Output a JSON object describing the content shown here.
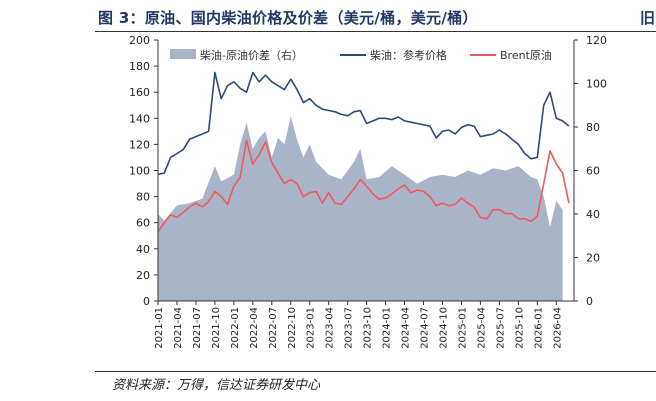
{
  "figure": {
    "title": "图 3：原油、国内柴油价格及价差（美元/桶，美元/桶）",
    "title_cut_char": "旧",
    "source": "资料来源：万得，信达证券研发中心"
  },
  "chart_data": {
    "type": "line",
    "x_ticks": [
      "2021-01",
      "2021-04",
      "2021-07",
      "2021-10",
      "2022-01",
      "2022-04",
      "2022-07",
      "2022-10",
      "2023-01",
      "2023-04",
      "2023-07",
      "2023-10",
      "2024-01",
      "2024-04",
      "2024-07",
      "2024-10",
      "2025-01",
      "2025-04",
      "2025-07",
      "2025-10",
      "2026-01",
      "2026-04"
    ],
    "left_axis": {
      "ylim": [
        0,
        200
      ],
      "ticks": [
        "0",
        "20",
        "40",
        "60",
        "80",
        "100",
        "120",
        "140",
        "160",
        "180",
        "200"
      ]
    },
    "right_axis": {
      "ylim": [
        0,
        120
      ],
      "ticks": [
        "0",
        "20",
        "40",
        "60",
        "80",
        "100",
        "120"
      ]
    },
    "grid": false,
    "legend_position": "top",
    "series": [
      {
        "name": "柴油-原油价差（右）",
        "type": "area",
        "axis": "right",
        "color": "#aab4c8",
        "points": [
          [
            "2021-01",
            40
          ],
          [
            "2021-02",
            37
          ],
          [
            "2021-04",
            44
          ],
          [
            "2021-06",
            45
          ],
          [
            "2021-08",
            47
          ],
          [
            "2021-10",
            62
          ],
          [
            "2021-11",
            55
          ],
          [
            "2022-01",
            58
          ],
          [
            "2022-02",
            72
          ],
          [
            "2022-03",
            82
          ],
          [
            "2022-04",
            70
          ],
          [
            "2022-05",
            75
          ],
          [
            "2022-06",
            78
          ],
          [
            "2022-07",
            66
          ],
          [
            "2022-08",
            75
          ],
          [
            "2022-09",
            72
          ],
          [
            "2022-10",
            85
          ],
          [
            "2022-11",
            74
          ],
          [
            "2022-12",
            66
          ],
          [
            "2023-01",
            72
          ],
          [
            "2023-02",
            64
          ],
          [
            "2023-04",
            58
          ],
          [
            "2023-06",
            56
          ],
          [
            "2023-08",
            64
          ],
          [
            "2023-09",
            70
          ],
          [
            "2023-10",
            56
          ],
          [
            "2023-12",
            57
          ],
          [
            "2024-02",
            62
          ],
          [
            "2024-04",
            58
          ],
          [
            "2024-06",
            54
          ],
          [
            "2024-08",
            57
          ],
          [
            "2024-10",
            58
          ],
          [
            "2024-12",
            57
          ],
          [
            "2025-02",
            60
          ],
          [
            "2025-04",
            58
          ],
          [
            "2025-06",
            61
          ],
          [
            "2025-08",
            60
          ],
          [
            "2025-10",
            62
          ],
          [
            "2025-12",
            57
          ],
          [
            "2026-01",
            56
          ],
          [
            "2026-02",
            48
          ],
          [
            "2026-03",
            34
          ],
          [
            "2026-04",
            46
          ],
          [
            "2026-05",
            42
          ]
        ]
      },
      {
        "name": "柴油：参考价格",
        "type": "line",
        "axis": "left",
        "color": "#2e4a7a",
        "points": [
          [
            "2021-01",
            97
          ],
          [
            "2021-02",
            98
          ],
          [
            "2021-03",
            110
          ],
          [
            "2021-04",
            113
          ],
          [
            "2021-05",
            116
          ],
          [
            "2021-06",
            124
          ],
          [
            "2021-07",
            126
          ],
          [
            "2021-08",
            128
          ],
          [
            "2021-09",
            130
          ],
          [
            "2021-10",
            175
          ],
          [
            "2021-11",
            155
          ],
          [
            "2021-12",
            165
          ],
          [
            "2022-01",
            168
          ],
          [
            "2022-02",
            163
          ],
          [
            "2022-03",
            160
          ],
          [
            "2022-04",
            175
          ],
          [
            "2022-05",
            168
          ],
          [
            "2022-06",
            173
          ],
          [
            "2022-07",
            168
          ],
          [
            "2022-08",
            165
          ],
          [
            "2022-09",
            162
          ],
          [
            "2022-10",
            170
          ],
          [
            "2022-11",
            162
          ],
          [
            "2022-12",
            152
          ],
          [
            "2023-01",
            155
          ],
          [
            "2023-02",
            150
          ],
          [
            "2023-03",
            147
          ],
          [
            "2023-04",
            146
          ],
          [
            "2023-05",
            145
          ],
          [
            "2023-06",
            143
          ],
          [
            "2023-07",
            142
          ],
          [
            "2023-08",
            145
          ],
          [
            "2023-09",
            146
          ],
          [
            "2023-10",
            136
          ],
          [
            "2023-11",
            138
          ],
          [
            "2023-12",
            140
          ],
          [
            "2024-01",
            140
          ],
          [
            "2024-02",
            139
          ],
          [
            "2024-03",
            141
          ],
          [
            "2024-04",
            138
          ],
          [
            "2024-05",
            137
          ],
          [
            "2024-06",
            136
          ],
          [
            "2024-07",
            135
          ],
          [
            "2024-08",
            134
          ],
          [
            "2024-09",
            125
          ],
          [
            "2024-10",
            130
          ],
          [
            "2024-11",
            131
          ],
          [
            "2024-12",
            128
          ],
          [
            "2025-01",
            133
          ],
          [
            "2025-02",
            135
          ],
          [
            "2025-03",
            134
          ],
          [
            "2025-04",
            126
          ],
          [
            "2025-05",
            127
          ],
          [
            "2025-06",
            128
          ],
          [
            "2025-07",
            131
          ],
          [
            "2025-08",
            128
          ],
          [
            "2025-09",
            124
          ],
          [
            "2025-10",
            120
          ],
          [
            "2025-11",
            113
          ],
          [
            "2025-12",
            109
          ],
          [
            "2026-01",
            110
          ],
          [
            "2026-02",
            150
          ],
          [
            "2026-03",
            160
          ],
          [
            "2026-04",
            140
          ],
          [
            "2026-05",
            138
          ],
          [
            "2026-06",
            134
          ]
        ]
      },
      {
        "name": "Brent原油",
        "type": "line",
        "axis": "left",
        "color": "#ee5a5a",
        "points": [
          [
            "2021-01",
            53
          ],
          [
            "2021-02",
            60
          ],
          [
            "2021-03",
            66
          ],
          [
            "2021-04",
            64
          ],
          [
            "2021-05",
            68
          ],
          [
            "2021-06",
            72
          ],
          [
            "2021-07",
            75
          ],
          [
            "2021-08",
            72
          ],
          [
            "2021-09",
            76
          ],
          [
            "2021-10",
            84
          ],
          [
            "2021-11",
            80
          ],
          [
            "2021-12",
            74
          ],
          [
            "2022-01",
            88
          ],
          [
            "2022-02",
            95
          ],
          [
            "2022-03",
            123
          ],
          [
            "2022-04",
            105
          ],
          [
            "2022-05",
            112
          ],
          [
            "2022-06",
            122
          ],
          [
            "2022-07",
            106
          ],
          [
            "2022-08",
            98
          ],
          [
            "2022-09",
            90
          ],
          [
            "2022-10",
            93
          ],
          [
            "2022-11",
            90
          ],
          [
            "2022-12",
            80
          ],
          [
            "2023-01",
            83
          ],
          [
            "2023-02",
            84
          ],
          [
            "2023-03",
            75
          ],
          [
            "2023-04",
            83
          ],
          [
            "2023-05",
            75
          ],
          [
            "2023-06",
            74
          ],
          [
            "2023-07",
            80
          ],
          [
            "2023-08",
            86
          ],
          [
            "2023-09",
            93
          ],
          [
            "2023-10",
            88
          ],
          [
            "2023-11",
            82
          ],
          [
            "2023-12",
            78
          ],
          [
            "2024-01",
            79
          ],
          [
            "2024-02",
            82
          ],
          [
            "2024-03",
            86
          ],
          [
            "2024-04",
            89
          ],
          [
            "2024-05",
            83
          ],
          [
            "2024-06",
            85
          ],
          [
            "2024-07",
            84
          ],
          [
            "2024-08",
            80
          ],
          [
            "2024-09",
            73
          ],
          [
            "2024-10",
            75
          ],
          [
            "2024-11",
            73
          ],
          [
            "2024-12",
            74
          ],
          [
            "2025-01",
            79
          ],
          [
            "2025-02",
            75
          ],
          [
            "2025-03",
            72
          ],
          [
            "2025-04",
            64
          ],
          [
            "2025-05",
            63
          ],
          [
            "2025-06",
            70
          ],
          [
            "2025-07",
            70
          ],
          [
            "2025-08",
            67
          ],
          [
            "2025-09",
            67
          ],
          [
            "2025-10",
            63
          ],
          [
            "2025-11",
            63
          ],
          [
            "2025-12",
            61
          ],
          [
            "2026-01",
            65
          ],
          [
            "2026-02",
            90
          ],
          [
            "2026-03",
            115
          ],
          [
            "2026-04",
            105
          ],
          [
            "2026-05",
            98
          ],
          [
            "2026-06",
            75
          ]
        ]
      }
    ]
  }
}
